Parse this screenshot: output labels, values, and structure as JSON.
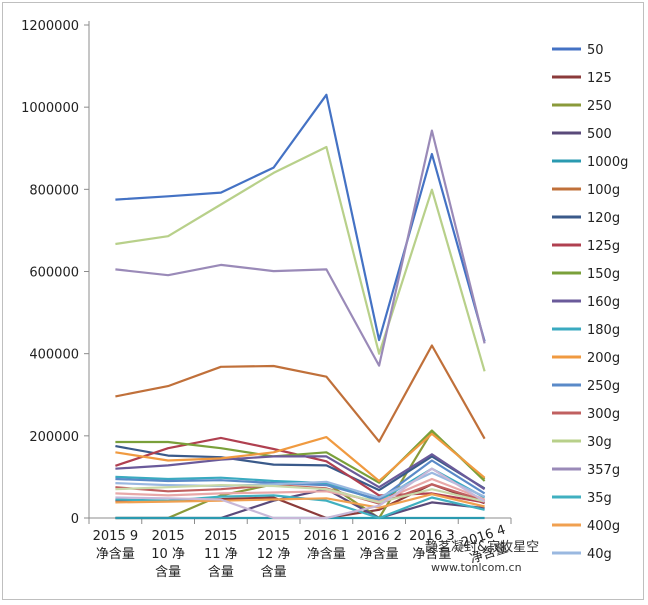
{
  "chart_data": {
    "type": "line",
    "title": "",
    "xlabel": "",
    "ylabel": "",
    "ylim": [
      0,
      1200000
    ],
    "yticks": [
      0,
      200000,
      400000,
      600000,
      800000,
      1000000,
      1200000
    ],
    "ytick_labels": [
      "0",
      "200000",
      "400000",
      "600000",
      "800000",
      "1000000",
      "1200000"
    ],
    "grid": false,
    "legend": "right",
    "categories": [
      [
        "2015 9",
        "净含量"
      ],
      [
        "2015",
        "10 净",
        "含量"
      ],
      [
        "2015",
        "11 净",
        "含量"
      ],
      [
        "2015",
        "12 净",
        "含量"
      ],
      [
        "2016 1",
        "净含量"
      ],
      [
        "2016 2",
        "净含量"
      ],
      [
        "2016 3",
        "净含量"
      ],
      [
        "2016 4",
        "净含量"
      ]
    ],
    "series": [
      {
        "name": "50",
        "color": "#4472c4",
        "values": [
          775000,
          783000,
          792000,
          853000,
          1030000,
          433000,
          886000,
          430000
        ]
      },
      {
        "name": "125",
        "color": "#8b3a3a",
        "values": [
          42000,
          41000,
          46000,
          50000,
          0,
          20000,
          82000,
          36000
        ]
      },
      {
        "name": "250",
        "color": "#8a9a3a",
        "values": [
          0,
          0,
          55000,
          82000,
          85000,
          0,
          210000,
          95000
        ]
      },
      {
        "name": "500",
        "color": "#5a4a7a",
        "values": [
          0,
          0,
          0,
          42000,
          70000,
          0,
          38000,
          24000
        ]
      },
      {
        "name": "1000g",
        "color": "#2a9ab0",
        "values": [
          0,
          0,
          0,
          0,
          0,
          0,
          0,
          0
        ]
      },
      {
        "name": "100g",
        "color": "#c0703a",
        "values": [
          296000,
          321000,
          368000,
          370000,
          344000,
          186000,
          420000,
          193000
        ]
      },
      {
        "name": "120g",
        "color": "#3a5a8a",
        "values": [
          175000,
          152000,
          148000,
          130000,
          128000,
          68000,
          150000,
          72000
        ]
      },
      {
        "name": "125g",
        "color": "#b04050",
        "values": [
          127000,
          170000,
          195000,
          168000,
          138000,
          55000,
          60000,
          38000
        ]
      },
      {
        "name": "150g",
        "color": "#7aa03a",
        "values": [
          185000,
          185000,
          170000,
          150000,
          160000,
          86000,
          213000,
          90000
        ]
      },
      {
        "name": "160g",
        "color": "#6a5a9a",
        "values": [
          120000,
          128000,
          142000,
          150000,
          150000,
          75000,
          155000,
          70000
        ]
      },
      {
        "name": "180g",
        "color": "#3aaac0",
        "values": [
          100000,
          95000,
          98000,
          90000,
          85000,
          42000,
          120000,
          50000
        ]
      },
      {
        "name": "200g",
        "color": "#f09a40",
        "values": [
          160000,
          140000,
          145000,
          160000,
          197000,
          90000,
          205000,
          98000
        ]
      },
      {
        "name": "250g",
        "color": "#5a8ac8",
        "values": [
          95000,
          90000,
          92000,
          85000,
          80000,
          45000,
          140000,
          60000
        ]
      },
      {
        "name": "300g",
        "color": "#c06060",
        "values": [
          75000,
          65000,
          70000,
          80000,
          72000,
          35000,
          82000,
          42000
        ]
      },
      {
        "name": "30g",
        "color": "#b8d08a",
        "values": [
          667000,
          686000,
          763000,
          840000,
          903000,
          400000,
          799000,
          357000
        ]
      },
      {
        "name": "357g",
        "color": "#9a8ab8",
        "values": [
          605000,
          591000,
          616000,
          601000,
          605000,
          371000,
          943000,
          425000
        ]
      },
      {
        "name": "35g",
        "color": "#40b0c0",
        "values": [
          45000,
          42000,
          52000,
          55000,
          42000,
          0,
          50000,
          20000
        ]
      },
      {
        "name": "400g",
        "color": "#f0a050",
        "values": [
          38000,
          40000,
          42000,
          45000,
          48000,
          25000,
          58000,
          28000
        ]
      },
      {
        "name": "40g",
        "color": "#9ab8e0",
        "values": [
          85000,
          80000,
          78000,
          82000,
          88000,
          50000,
          110000,
          52000
        ]
      },
      {
        "name": "",
        "color": "#e8a8a8",
        "values": [
          60000,
          55000,
          60000,
          62000,
          65000,
          40000,
          95000,
          45000
        ]
      },
      {
        "name": "",
        "color": "#c8d8a8",
        "values": [
          70000,
          75000,
          80000,
          78000,
          70000,
          38000,
          70000,
          40000
        ]
      },
      {
        "name": "",
        "color": "#c8b8d8",
        "values": [
          50000,
          48000,
          45000,
          0,
          0,
          30000,
          120000,
          40000
        ]
      }
    ]
  },
  "watermark": {
    "line1": "静茗凝封&寂牧星空",
    "line2": "www.tonlcom.cn"
  }
}
